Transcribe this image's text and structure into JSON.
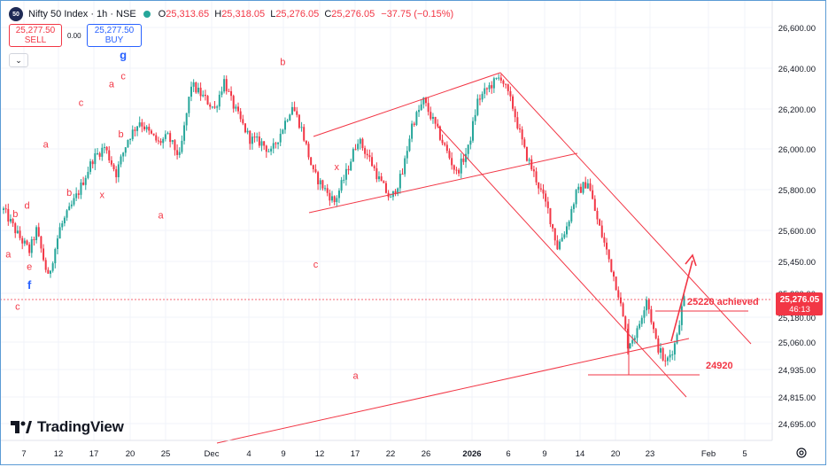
{
  "header": {
    "badge": "50",
    "symbol": "Nifty 50 Index · 1h · NSE",
    "open_label": "O",
    "open": "25,313.65",
    "high_label": "H",
    "high": "25,318.05",
    "low_label": "L",
    "low": "25,276.05",
    "close_label": "C",
    "close": "25,276.05",
    "change": "−37.75 (−0.15%)"
  },
  "trade": {
    "sell_price": "25,277.50",
    "sell_label": "SELL",
    "spread": "0.00",
    "buy_price": "25,277.50",
    "buy_label": "BUY",
    "collapse_icon": "chevron-down-icon"
  },
  "logo_text": "TradingView",
  "colors": {
    "up": "#26a69a",
    "down": "#f23645",
    "annotation": "#f23645",
    "wave_label_blue": "#2962ff",
    "price_tag": "#f23645"
  },
  "chart_data": {
    "type": "candlestick",
    "y_axis_ticks": [
      26600,
      26400,
      26200,
      26000,
      25800,
      25600,
      25450,
      25300,
      25180,
      25060,
      24935,
      24815,
      24695
    ],
    "y_tick_labels": [
      "26,600.00",
      "26,400.00",
      "26,200.00",
      "26,000.00",
      "25,800.00",
      "25,600.00",
      "25,450.00",
      "25,300.00",
      "25,180.00",
      "25,060.00",
      "24,935.00",
      "24,815.00",
      "24,695.00"
    ],
    "x_tick_labels": [
      "7",
      "12",
      "17",
      "20",
      "25",
      "Dec",
      "4",
      "9",
      "12",
      "17",
      "22",
      "26",
      "2026",
      "6",
      "9",
      "14",
      "20",
      "23",
      "Feb",
      "5"
    ],
    "last_price": "25,276.05",
    "countdown": "46:13",
    "price_path": [
      [
        0,
        25700
      ],
      [
        6,
        25580
      ],
      [
        11,
        25500
      ],
      [
        14,
        25600
      ],
      [
        19,
        25370
      ],
      [
        24,
        25610
      ],
      [
        29,
        25720
      ],
      [
        32,
        25790
      ],
      [
        38,
        25950
      ],
      [
        43,
        26010
      ],
      [
        48,
        25880
      ],
      [
        53,
        26050
      ],
      [
        58,
        26140
      ],
      [
        62,
        26080
      ],
      [
        66,
        26030
      ],
      [
        70,
        26060
      ],
      [
        75,
        25960
      ],
      [
        80,
        26320
      ],
      [
        85,
        26260
      ],
      [
        90,
        26200
      ],
      [
        94,
        26340
      ],
      [
        97,
        26240
      ],
      [
        101,
        26140
      ],
      [
        105,
        26050
      ],
      [
        110,
        26030
      ],
      [
        114,
        25980
      ],
      [
        118,
        26080
      ],
      [
        123,
        26220
      ],
      [
        127,
        26100
      ],
      [
        132,
        25880
      ],
      [
        137,
        25800
      ],
      [
        141,
        25740
      ],
      [
        146,
        25880
      ],
      [
        151,
        26050
      ],
      [
        156,
        25950
      ],
      [
        160,
        25850
      ],
      [
        165,
        25750
      ],
      [
        170,
        25880
      ],
      [
        174,
        26120
      ],
      [
        179,
        26240
      ],
      [
        183,
        26140
      ],
      [
        188,
        26010
      ],
      [
        193,
        25880
      ],
      [
        198,
        26000
      ],
      [
        202,
        26240
      ],
      [
        207,
        26310
      ],
      [
        212,
        26360
      ],
      [
        217,
        26210
      ],
      [
        222,
        25990
      ],
      [
        227,
        25850
      ],
      [
        232,
        25700
      ],
      [
        236,
        25520
      ],
      [
        240,
        25620
      ],
      [
        244,
        25780
      ],
      [
        249,
        25840
      ],
      [
        253,
        25650
      ],
      [
        257,
        25500
      ],
      [
        262,
        25300
      ],
      [
        266,
        25050
      ],
      [
        270,
        25110
      ],
      [
        274,
        25280
      ],
      [
        278,
        25060
      ],
      [
        282,
        24960
      ],
      [
        286,
        25050
      ],
      [
        290,
        25280
      ]
    ],
    "annotations": {
      "wave_labels": [
        {
          "text": "a",
          "t": 2,
          "p": 25530,
          "pos": "below",
          "color": "#f23645"
        },
        {
          "text": "b",
          "t": 5,
          "p": 25640,
          "pos": "above",
          "color": "#f23645"
        },
        {
          "text": "c",
          "t": 6,
          "p": 25280,
          "pos": "below",
          "color": "#f23645"
        },
        {
          "text": "d",
          "t": 10,
          "p": 25680,
          "pos": "above",
          "color": "#f23645"
        },
        {
          "text": "e",
          "t": 11,
          "p": 25470,
          "pos": "below",
          "color": "#f23645"
        },
        {
          "text": "f",
          "t": 11,
          "p": 25380,
          "pos": "below",
          "color": "#2962ff"
        },
        {
          "text": "a",
          "t": 18,
          "p": 25980,
          "pos": "above",
          "color": "#f23645"
        },
        {
          "text": "b",
          "t": 28,
          "p": 25830,
          "pos": "below",
          "color": "#f23645"
        },
        {
          "text": "c",
          "t": 33,
          "p": 26190,
          "pos": "above",
          "color": "#f23645"
        },
        {
          "text": "x",
          "t": 42,
          "p": 25820,
          "pos": "below",
          "color": "#f23645"
        },
        {
          "text": "a",
          "t": 46,
          "p": 26280,
          "pos": "above",
          "color": "#f23645"
        },
        {
          "text": "b",
          "t": 50,
          "p": 26120,
          "pos": "below",
          "color": "#f23645"
        },
        {
          "text": "c",
          "t": 51,
          "p": 26320,
          "pos": "above",
          "color": "#f23645"
        },
        {
          "text": "g",
          "t": 51,
          "p": 26420,
          "pos": "above",
          "color": "#2962ff"
        },
        {
          "text": "a",
          "t": 67,
          "p": 25720,
          "pos": "below",
          "color": "#f23645"
        },
        {
          "text": "b",
          "t": 119,
          "p": 26390,
          "pos": "above",
          "color": "#f23645"
        },
        {
          "text": "c",
          "t": 133,
          "p": 25480,
          "pos": "below",
          "color": "#f23645"
        },
        {
          "text": "x",
          "t": 142,
          "p": 25870,
          "pos": "above",
          "color": "#f23645"
        },
        {
          "text": "a",
          "t": 150,
          "p": 24950,
          "pos": "below",
          "color": "#f23645"
        }
      ],
      "level_labels": [
        {
          "text": "25220 achieved",
          "t": 177,
          "p": 25220,
          "color": "#f23645"
        },
        {
          "text": "24920",
          "t": 177,
          "p": 24920,
          "color": "#f23645"
        }
      ]
    }
  }
}
